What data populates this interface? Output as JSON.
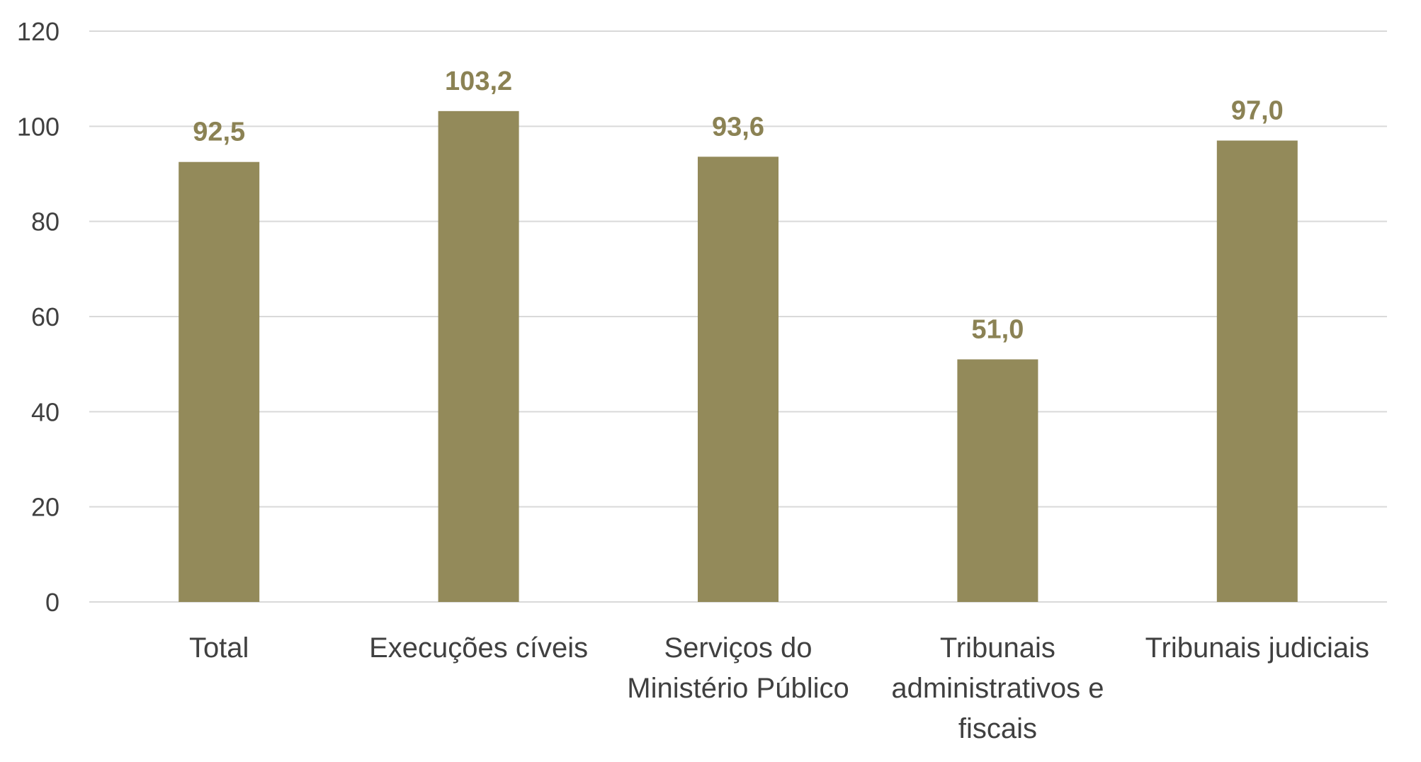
{
  "chart_data": {
    "type": "bar",
    "categories": [
      [
        "Total"
      ],
      [
        "Execuções cíveis"
      ],
      [
        "Serviços do",
        "Ministério Público"
      ],
      [
        "Tribunais",
        "administrativos e",
        "fiscais"
      ],
      [
        "Tribunais judiciais"
      ]
    ],
    "values": [
      92.5,
      103.2,
      93.6,
      51.0,
      97.0
    ],
    "data_labels": [
      "92,5",
      "103,2",
      "93,6",
      "51,0",
      "97,0"
    ],
    "ylim": [
      0,
      120
    ],
    "yticks": [
      0,
      20,
      40,
      60,
      80,
      100,
      120
    ],
    "grid": true,
    "legend": "none",
    "colors": {
      "bar": "#938a5a",
      "data_label": "#8b8254"
    }
  }
}
